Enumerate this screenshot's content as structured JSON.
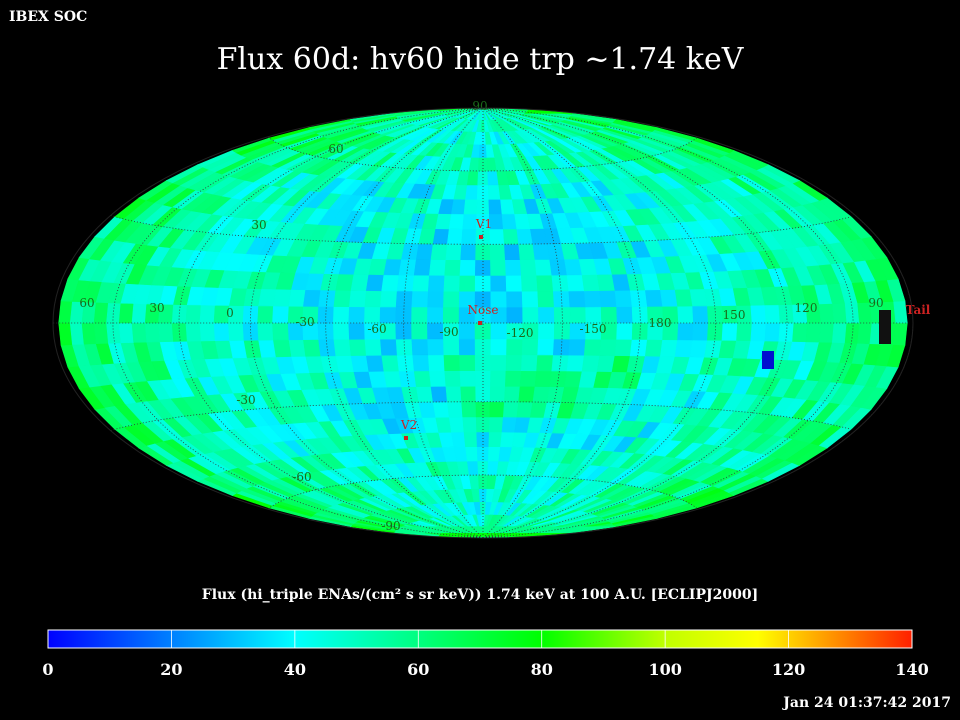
{
  "header": {
    "corner_label": "IBEX SOC",
    "title": "Flux   60d: hv60 hide trp ~1.74 keV"
  },
  "map": {
    "projection": "hammer-aitoff",
    "frame": "ECLIPJ2000",
    "latitude_labels": [
      {
        "text": "90"
      },
      {
        "text": "60"
      },
      {
        "text": "30"
      },
      {
        "text": "-30"
      },
      {
        "text": "-60"
      },
      {
        "text": "-90"
      }
    ],
    "longitude_labels": [
      "60",
      "30",
      "0",
      "-30",
      "-60",
      "-90",
      "-120",
      "-150",
      "180",
      "150",
      "120",
      "90"
    ],
    "markers": [
      {
        "name": "V1",
        "lon": -95,
        "lat": 30,
        "color": "#cc2222"
      },
      {
        "name": "Nose",
        "lon": -105,
        "lat": 0,
        "color": "#cc2222"
      },
      {
        "name": "V2",
        "lon": -70,
        "lat": -32,
        "color": "#cc2222"
      },
      {
        "name": "Tail",
        "lon": 75,
        "lat": 0,
        "color": "#cc2222"
      }
    ],
    "grid": "dotted",
    "colormap": "rainbow (blue → cyan → green → yellow → red)"
  },
  "colorbar": {
    "caption": "Flux (hi_triple ENAs/(cm² s sr keV))  1.74 keV at 100 A.U. [ECLIPJ2000]",
    "min": 0,
    "max": 140,
    "ticks": [
      "0",
      "20",
      "40",
      "60",
      "80",
      "100",
      "120",
      "140"
    ],
    "stops": [
      {
        "v": 0,
        "color": "#0000ff"
      },
      {
        "v": 20,
        "color": "#0080ff"
      },
      {
        "v": 40,
        "color": "#00ffff"
      },
      {
        "v": 60,
        "color": "#00ff80"
      },
      {
        "v": 80,
        "color": "#00ff00"
      },
      {
        "v": 100,
        "color": "#c0ff00"
      },
      {
        "v": 115,
        "color": "#ffff00"
      },
      {
        "v": 140,
        "color": "#ff2000"
      }
    ]
  },
  "footer": {
    "timestamp": "Jan 24 01:37:42 2017"
  }
}
